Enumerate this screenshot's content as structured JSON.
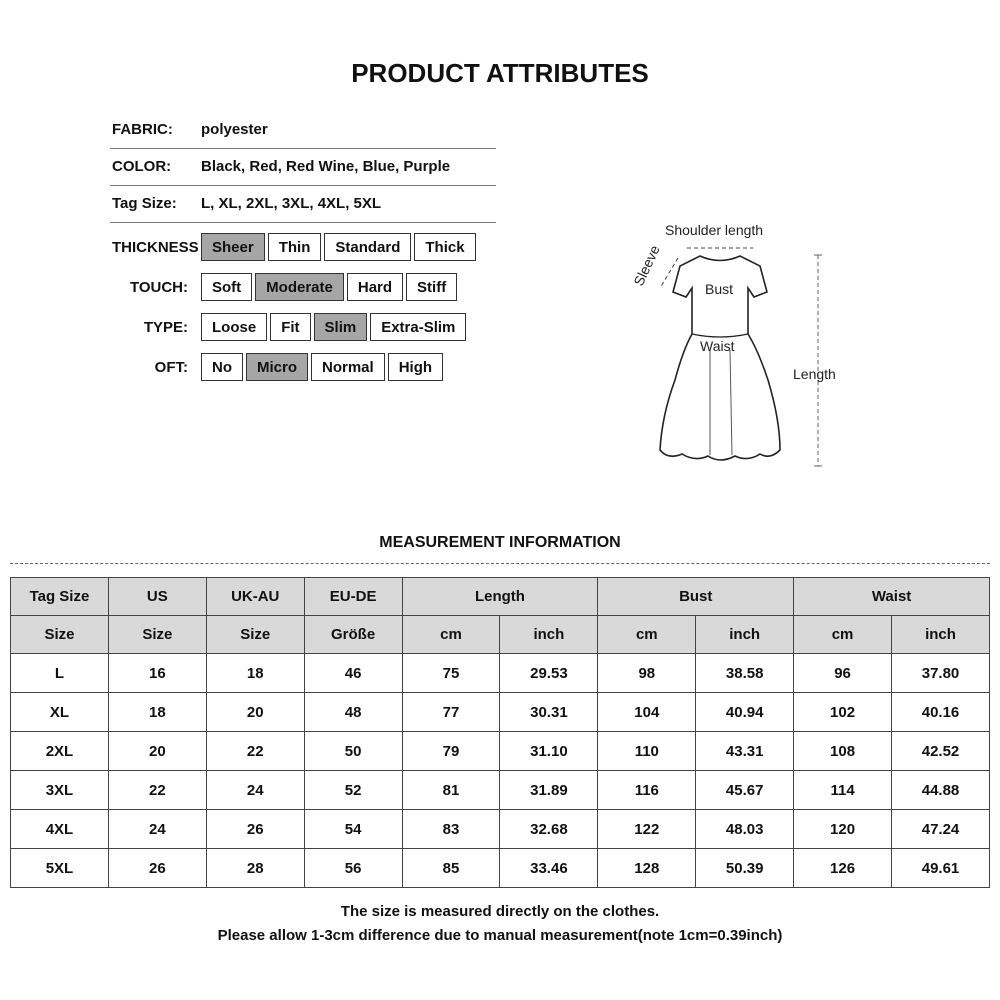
{
  "title": "PRODUCT ATTRIBUTES",
  "attributes": [
    {
      "label": "FABRIC:",
      "value": "polyester"
    },
    {
      "label": "COLOR:",
      "value": "Black, Red, Red Wine, Blue, Purple"
    },
    {
      "label": "Tag Size:",
      "value": "L, XL, 2XL, 3XL, 4XL, 5XL"
    }
  ],
  "options": [
    {
      "label": "THICKNESS",
      "items": [
        "Sheer",
        "Thin",
        "Standard",
        "Thick"
      ],
      "selected": "Sheer"
    },
    {
      "label": "TOUCH:",
      "items": [
        "Soft",
        "Moderate",
        "Hard",
        "Stiff"
      ],
      "selected": "Moderate"
    },
    {
      "label": "TYPE:",
      "items": [
        "Loose",
        "Fit",
        "Slim",
        "Extra-Slim"
      ],
      "selected": "Slim"
    },
    {
      "label": "OFT:",
      "items": [
        "No",
        "Micro",
        "Normal",
        "High"
      ],
      "selected": "Micro"
    }
  ],
  "diagram": {
    "shoulder": "Shoulder length",
    "sleeve": "Sleeve",
    "bust": "Bust",
    "waist": "Waist",
    "length": "Length"
  },
  "measurement": {
    "title": "MEASUREMENT INFORMATION",
    "header1": [
      "Tag Size",
      "US",
      "UK-AU",
      "EU-DE",
      "Length",
      "Bust",
      "Waist"
    ],
    "header2": [
      "Size",
      "Size",
      "Size",
      "Größe",
      "cm",
      "inch",
      "cm",
      "inch",
      "cm",
      "inch"
    ],
    "rows": [
      [
        "L",
        "16",
        "18",
        "46",
        "75",
        "29.53",
        "98",
        "38.58",
        "96",
        "37.80"
      ],
      [
        "XL",
        "18",
        "20",
        "48",
        "77",
        "30.31",
        "104",
        "40.94",
        "102",
        "40.16"
      ],
      [
        "2XL",
        "20",
        "22",
        "50",
        "79",
        "31.10",
        "110",
        "43.31",
        "108",
        "42.52"
      ],
      [
        "3XL",
        "22",
        "24",
        "52",
        "81",
        "31.89",
        "116",
        "45.67",
        "114",
        "44.88"
      ],
      [
        "4XL",
        "24",
        "26",
        "54",
        "83",
        "32.68",
        "122",
        "48.03",
        "120",
        "47.24"
      ],
      [
        "5XL",
        "26",
        "28",
        "56",
        "85",
        "33.46",
        "128",
        "50.39",
        "126",
        "49.61"
      ]
    ]
  },
  "notes": [
    "The size is measured directly on the clothes.",
    "Please allow 1-3cm difference due to manual measurement(note 1cm=0.39inch)"
  ]
}
